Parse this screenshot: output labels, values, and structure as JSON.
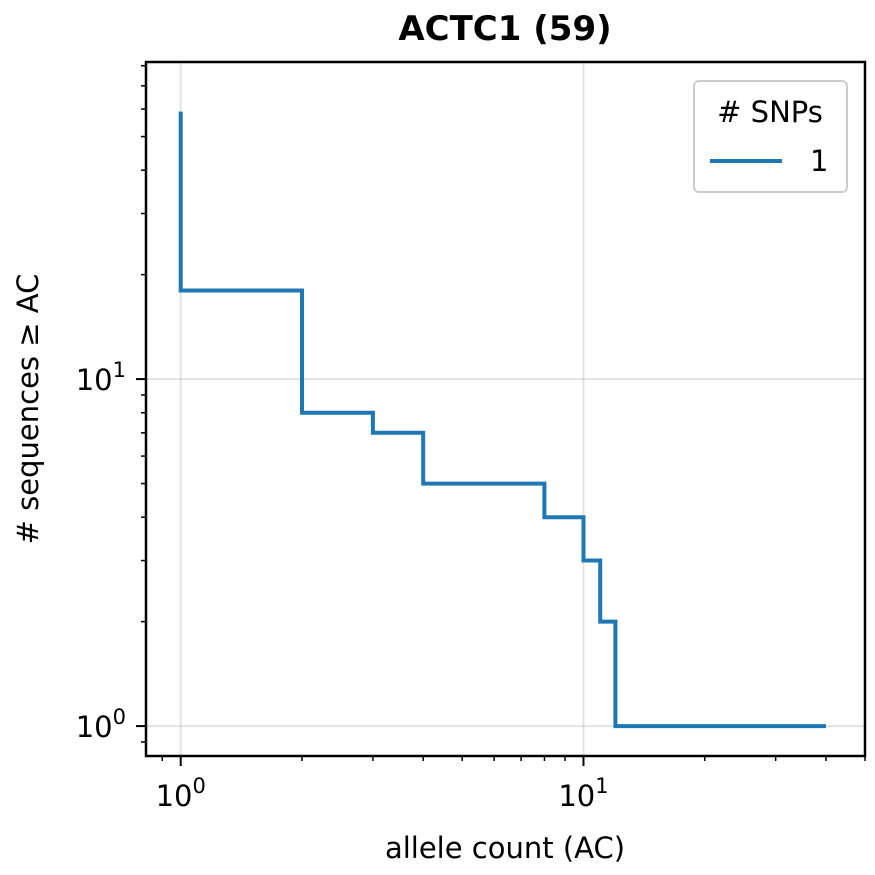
{
  "chart_data": {
    "type": "line",
    "drawstyle": "steps-post",
    "title": "ACTC1 (59)",
    "xlabel": "allele count (AC)",
    "ylabel": "# sequences ≥ AC",
    "xscale": "log",
    "yscale": "log",
    "xlim": [
      0.82,
      50
    ],
    "ylim": [
      0.82,
      82
    ],
    "grid": true,
    "legend": {
      "title": "# SNPs",
      "placement": "top-right"
    },
    "series": [
      {
        "name": "1",
        "color": "#1f77b4",
        "x": [
          1,
          1,
          2,
          2,
          3,
          3,
          4,
          4,
          8,
          8,
          10,
          10,
          11,
          11,
          12,
          12,
          40
        ],
        "y": [
          59,
          18,
          18,
          8,
          8,
          7,
          7,
          5,
          5,
          4,
          4,
          3,
          3,
          2,
          2,
          1,
          1
        ]
      }
    ],
    "x_major_ticks": [
      {
        "value": 1,
        "base": "10",
        "exp": "0"
      },
      {
        "value": 10,
        "base": "10",
        "exp": "1"
      }
    ],
    "y_major_ticks": [
      {
        "value": 1,
        "base": "10",
        "exp": "0"
      },
      {
        "value": 10,
        "base": "10",
        "exp": "1"
      }
    ]
  }
}
